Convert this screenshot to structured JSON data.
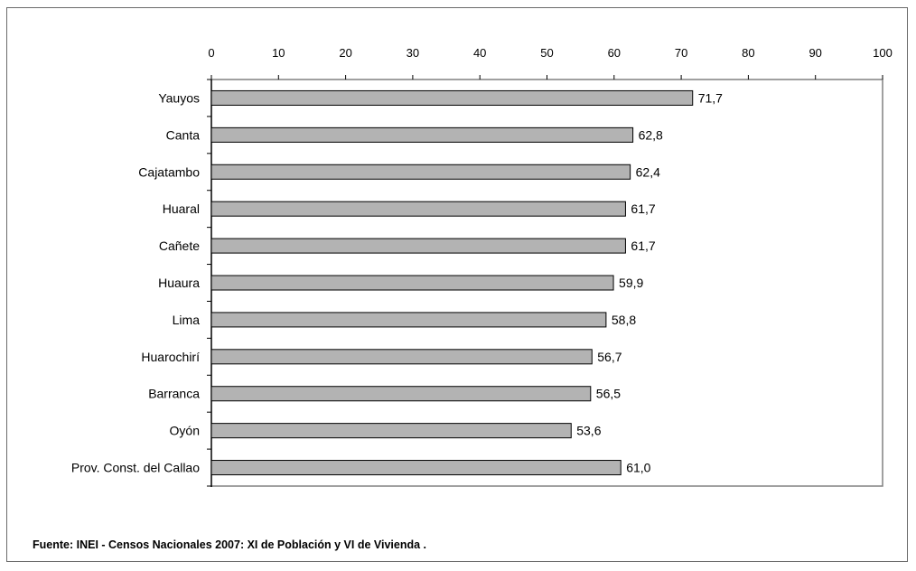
{
  "chart_data": {
    "type": "bar",
    "orientation": "horizontal",
    "categories": [
      "Yauyos",
      "Canta",
      "Cajatambo",
      "Huaral",
      "Cañete",
      "Huaura",
      "Lima",
      "Huarochirí",
      "Barranca",
      "Oyón",
      "Prov. Const. del Callao"
    ],
    "values": [
      71.7,
      62.8,
      62.4,
      61.7,
      61.7,
      59.9,
      58.8,
      56.7,
      56.5,
      53.6,
      61.0
    ],
    "value_labels": [
      "71,7",
      "62,8",
      "62,4",
      "61,7",
      "61,7",
      "59,9",
      "58,8",
      "56,7",
      "56,5",
      "53,6",
      "61,0"
    ],
    "xlim": [
      0,
      100
    ],
    "xticks": [
      0,
      10,
      20,
      30,
      40,
      50,
      60,
      70,
      80,
      90,
      100
    ],
    "x_axis_position": "top",
    "grid": false,
    "legend": "none",
    "colors": {
      "bar_fill": "#b3b3b3",
      "bar_stroke": "#000000",
      "plot_border": "#808080"
    }
  },
  "source_note": "Fuente: INEI -  Censos Nacionales 2007: XI de Población y VI de Vivienda ."
}
